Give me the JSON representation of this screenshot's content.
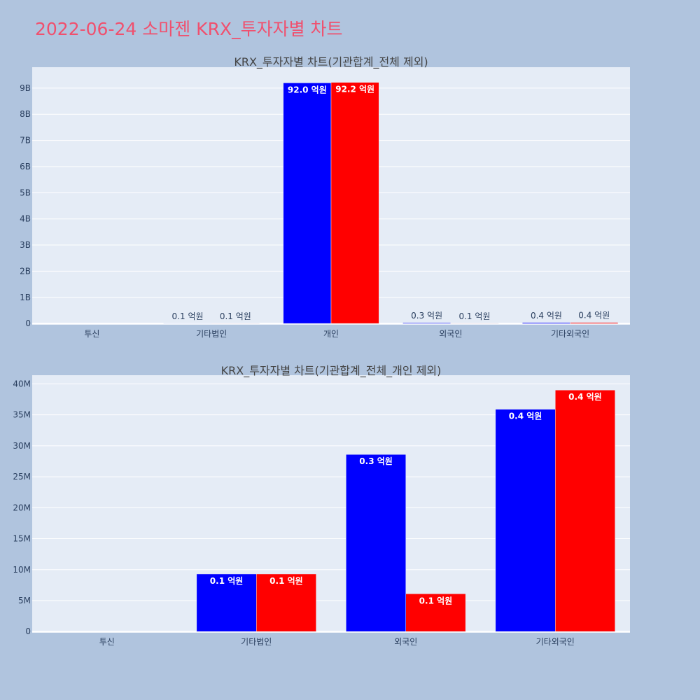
{
  "page": {
    "title": "2022-06-24 소마젠 KRX_투자자별 차트",
    "colors": {
      "background": "#b0c4de",
      "plot": "#e5ecf6",
      "title": "#f0506e",
      "series1": "#0000ff",
      "series2": "#ff0000"
    }
  },
  "chart_data": [
    {
      "type": "bar",
      "title": "KRX_투자자별 차트(기관합계_전체 제외)",
      "categories": [
        "투신",
        "기타법인",
        "개인",
        "외국인",
        "기타외국인"
      ],
      "series": [
        {
          "color": "#0000ff",
          "values": [
            0,
            10000000,
            9200000000,
            29000000,
            36000000
          ],
          "labels": [
            "",
            "0.1 억원",
            "92.0 억원",
            "0.3 억원",
            "0.4 억원"
          ]
        },
        {
          "color": "#ff0000",
          "values": [
            0,
            10000000,
            9220000000,
            6000000,
            39000000
          ],
          "labels": [
            "",
            "0.1 억원",
            "92.2 억원",
            "0.1 억원",
            "0.4 억원"
          ]
        }
      ],
      "yticks": [
        0,
        1000000000,
        2000000000,
        3000000000,
        4000000000,
        5000000000,
        6000000000,
        7000000000,
        8000000000,
        9000000000
      ],
      "ytick_labels": [
        "0",
        "1B",
        "2B",
        "3B",
        "4B",
        "5B",
        "6B",
        "7B",
        "8B",
        "9B"
      ],
      "ylim": [
        -50000000,
        9800000000
      ],
      "grid": true
    },
    {
      "type": "bar",
      "title": "KRX_투자자별 차트(기관합계_전체_개인 제외)",
      "categories": [
        "투신",
        "기타법인",
        "외국인",
        "기타외국인"
      ],
      "series": [
        {
          "color": "#0000ff",
          "values": [
            0,
            9300000,
            28600000,
            35900000
          ],
          "labels": [
            "",
            "0.1 억원",
            "0.3 억원",
            "0.4 억원"
          ]
        },
        {
          "color": "#ff0000",
          "values": [
            0,
            9300000,
            6100000,
            39000000
          ],
          "labels": [
            "",
            "0.1 억원",
            "0.1 억원",
            "0.4 억원"
          ]
        }
      ],
      "yticks": [
        0,
        5000000,
        10000000,
        15000000,
        20000000,
        25000000,
        30000000,
        35000000,
        40000000
      ],
      "ytick_labels": [
        "0",
        "5M",
        "10M",
        "15M",
        "20M",
        "25M",
        "30M",
        "35M",
        "40M"
      ],
      "ylim": [
        -200000,
        41400000
      ],
      "grid": true
    }
  ]
}
